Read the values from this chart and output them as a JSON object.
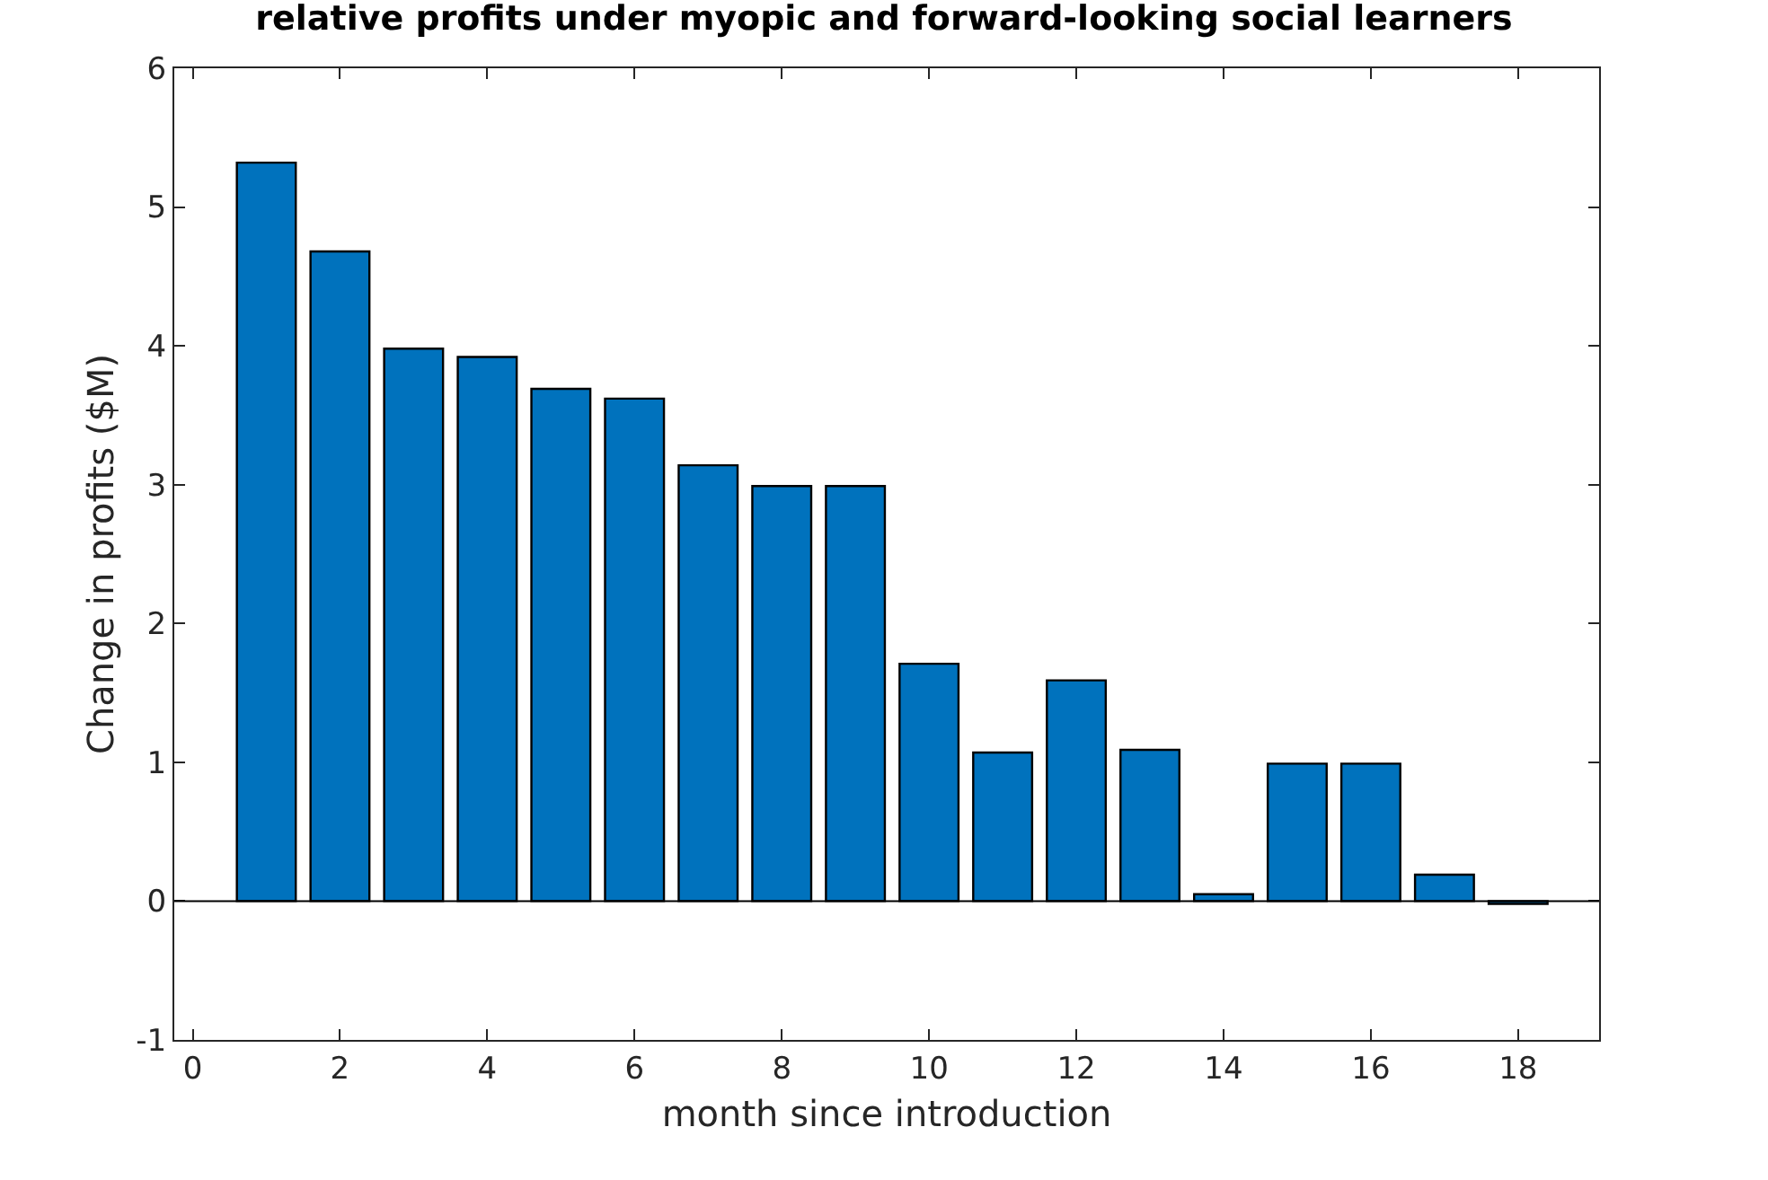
{
  "chart_data": {
    "type": "bar",
    "title": "relative profits under myopic and forward-looking social learners",
    "xlabel": "month since introduction",
    "ylabel": "Change in profits ($M)",
    "x": [
      1,
      2,
      3,
      4,
      5,
      6,
      7,
      8,
      9,
      10,
      11,
      12,
      13,
      14,
      15,
      16,
      17,
      18
    ],
    "values": [
      5.32,
      4.68,
      3.98,
      3.92,
      3.69,
      3.62,
      3.14,
      2.99,
      2.99,
      1.71,
      1.07,
      1.59,
      1.09,
      0.05,
      0.99,
      0.99,
      0.19,
      -0.02
    ],
    "color": "#0072bd",
    "xlim": [
      -0.25,
      19.1
    ],
    "xticks": [
      0,
      2,
      4,
      6,
      8,
      10,
      12,
      14,
      16,
      18
    ],
    "ylim": [
      -1,
      6
    ],
    "yticks": [
      -1,
      0,
      1,
      2,
      3,
      4,
      5,
      6
    ],
    "ref_lines": [
      {
        "axis": "y",
        "value": 0,
        "color": "#000000"
      }
    ]
  }
}
